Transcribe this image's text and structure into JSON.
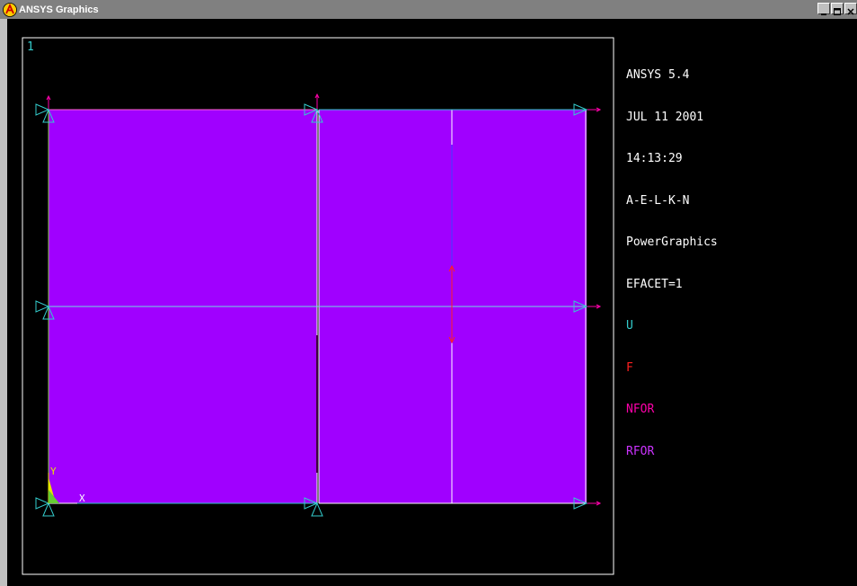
{
  "window": {
    "title": "ANSYS Graphics"
  },
  "graphics": {
    "window_number": "1",
    "axis_x_label": "X",
    "axis_y_label": "Y"
  },
  "legend": {
    "lines": [
      {
        "text": "ANSYS 5.4",
        "color": "#ffffff"
      },
      {
        "text": "JUL 11 2001",
        "color": "#ffffff"
      },
      {
        "text": "14:13:29",
        "color": "#ffffff"
      },
      {
        "text": "A-E-L-K-N",
        "color": "#ffffff"
      },
      {
        "text": "PowerGraphics",
        "color": "#ffffff"
      },
      {
        "text": "EFACET=1",
        "color": "#ffffff"
      },
      {
        "text": "U",
        "color": "#33cccc"
      },
      {
        "text": "F",
        "color": "#ff2020"
      },
      {
        "text": "NFOR",
        "color": "#ff00aa"
      },
      {
        "text": "RFOR",
        "color": "#cc33ff"
      }
    ]
  },
  "colors": {
    "area_fill": "#a000ff",
    "constraint": "#33cccc",
    "force": "#ff2020",
    "nodal_force": "#ff00aa",
    "element_edge": "#ffffff"
  }
}
